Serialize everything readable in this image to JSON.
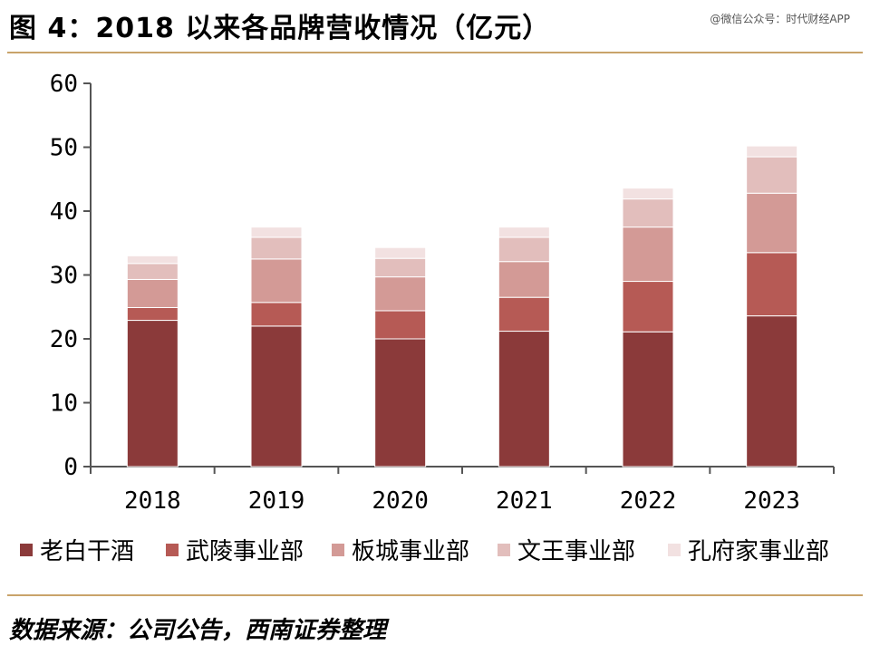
{
  "header": {
    "title": "图 4：2018 以来各品牌营收情况（亿元）",
    "watermark": "@微信公众号：时代财经APP"
  },
  "footer": {
    "source": "数据来源：公司公告，西南证券整理"
  },
  "chart_data": {
    "type": "bar",
    "stacked": true,
    "title": "2018 以来各品牌营收情况（亿元）",
    "xlabel": "",
    "ylabel": "",
    "ylim": [
      0,
      60
    ],
    "yticks": [
      0,
      10,
      20,
      30,
      40,
      50,
      60
    ],
    "categories": [
      "2018",
      "2019",
      "2020",
      "2021",
      "2022",
      "2023"
    ],
    "series": [
      {
        "name": "老白干酒",
        "color": "#8b3a3a",
        "values": [
          22.9,
          22.0,
          20.0,
          21.2,
          21.1,
          23.6
        ]
      },
      {
        "name": "武陵事业部",
        "color": "#b65a55",
        "values": [
          2.0,
          3.7,
          4.4,
          5.3,
          7.9,
          9.9
        ]
      },
      {
        "name": "板城事业部",
        "color": "#d39a96",
        "values": [
          4.4,
          6.8,
          5.3,
          5.6,
          8.5,
          9.3
        ]
      },
      {
        "name": "文王事业部",
        "color": "#e2bebc",
        "values": [
          2.5,
          3.4,
          2.9,
          3.8,
          4.4,
          5.7
        ]
      },
      {
        "name": "孔府家事业部",
        "color": "#f2e1e1",
        "values": [
          1.2,
          1.6,
          1.7,
          1.6,
          1.7,
          1.7
        ]
      }
    ],
    "legend_position": "bottom"
  }
}
